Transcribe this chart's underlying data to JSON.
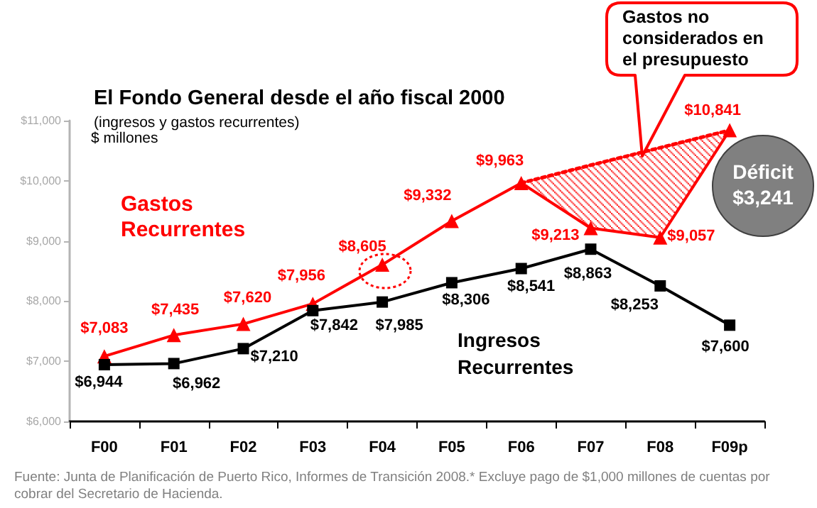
{
  "chart_data": {
    "type": "line",
    "title": "El Fondo General desde el año fiscal 2000",
    "subtitle": "(ingresos y gastos recurrentes)",
    "ylabel": "$ millones",
    "categories": [
      "F00",
      "F01",
      "F02",
      "F03",
      "F04",
      "F05",
      "F06",
      "F07",
      "F08",
      "F09p"
    ],
    "series": [
      {
        "name": "Gastos Recurrentes",
        "color": "#ff0000",
        "marker": "triangle",
        "values": [
          7083,
          7435,
          7620,
          7956,
          8605,
          9332,
          9963,
          9213,
          9057,
          10841
        ],
        "value_labels": [
          "$7,083",
          "$7,435",
          "$7,620",
          "$7,956",
          "$8,605",
          "$9,332",
          "$9,963",
          "$9,213",
          "$9,057",
          "$10,841"
        ]
      },
      {
        "name": "Ingresos Recurrentes",
        "color": "#000000",
        "marker": "square",
        "values": [
          6944,
          6962,
          7210,
          7842,
          7985,
          8306,
          8541,
          8863,
          8253,
          7600
        ],
        "value_labels": [
          "$6,944",
          "$6,962",
          "$7,210",
          "$7,842",
          "$7,985",
          "$8,306",
          "$8,541",
          "$8,863",
          "$8,253",
          "$7,600"
        ]
      },
      {
        "color": "#ff0000",
        "marker": "none",
        "line_style": "dotted",
        "x": [
          "F06",
          "F07",
          "F08",
          "F09p"
        ],
        "values": [
          9963,
          10260,
          10550,
          10841
        ],
        "lower": [
          9963,
          9213,
          9057,
          10841
        ],
        "upper": [
          9963,
          10260,
          10550,
          10841
        ]
      }
    ],
    "ylim": [
      6000,
      11000
    ],
    "yticks": [
      {
        "value": 6000,
        "label": "$6,000"
      },
      {
        "value": 7000,
        "label": "$7,000"
      },
      {
        "value": 8000,
        "label": "$8,000"
      },
      {
        "value": 9000,
        "label": "$9,000"
      },
      {
        "value": 10000,
        "label": "$10,000"
      },
      {
        "value": 11000,
        "label": "$11,000"
      }
    ],
    "annotations": [
      "Gastos no considerados en el presupuesto",
      "Déficit $3,241",
      "Fuente: Junta de Planificación de Puerto Rico, Informes de Transición 2008.* Excluye pago de $1,000 millones de cuentas por cobrar del Secretario de Hacienda."
    ]
  }
}
